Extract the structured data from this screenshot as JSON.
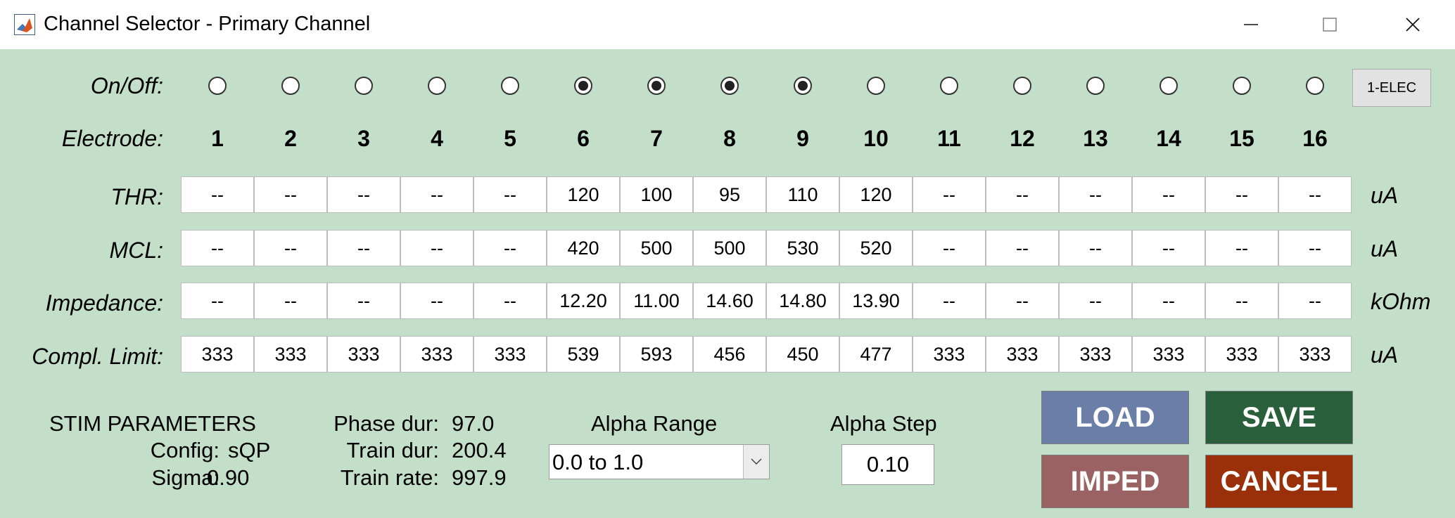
{
  "window": {
    "title": "Channel Selector - Primary Channel"
  },
  "labels": {
    "onoff": "On/Off:",
    "electrode": "Electrode:",
    "thr": "THR:",
    "mcl": "MCL:",
    "impedance": "Impedance:",
    "compl": "Compl. Limit:"
  },
  "units": {
    "thr": "uA",
    "mcl": "uA",
    "impedance": "kOhm",
    "compl": "uA"
  },
  "electrodes": [
    "1",
    "2",
    "3",
    "4",
    "5",
    "6",
    "7",
    "8",
    "9",
    "10",
    "11",
    "12",
    "13",
    "14",
    "15",
    "16"
  ],
  "onoff": [
    false,
    false,
    false,
    false,
    false,
    true,
    true,
    true,
    true,
    false,
    false,
    false,
    false,
    false,
    false,
    false
  ],
  "thr": [
    "--",
    "--",
    "--",
    "--",
    "--",
    "120",
    "100",
    "95",
    "110",
    "120",
    "--",
    "--",
    "--",
    "--",
    "--",
    "--"
  ],
  "mcl": [
    "--",
    "--",
    "--",
    "--",
    "--",
    "420",
    "500",
    "500",
    "530",
    "520",
    "--",
    "--",
    "--",
    "--",
    "--",
    "--"
  ],
  "impedance": [
    "--",
    "--",
    "--",
    "--",
    "--",
    "12.20",
    "11.00",
    "14.60",
    "14.80",
    "13.90",
    "--",
    "--",
    "--",
    "--",
    "--",
    "--"
  ],
  "compl": [
    "333",
    "333",
    "333",
    "333",
    "333",
    "539",
    "593",
    "456",
    "450",
    "477",
    "333",
    "333",
    "333",
    "333",
    "333",
    "333"
  ],
  "one_elec_button": "1-ELEC",
  "stim": {
    "heading": "STIM PARAMETERS",
    "config_label": "Config:",
    "config_value": "sQP",
    "sigma_label": "Sigma:",
    "sigma_value": "0.90",
    "phase_label": "Phase dur:",
    "phase_value": "97.0",
    "train_label": "Train dur:",
    "train_value": "200.4",
    "rate_label": "Train rate:",
    "rate_value": "997.9"
  },
  "alpha_range": {
    "label": "Alpha Range",
    "selected": "0.0 to 1.0"
  },
  "alpha_step": {
    "label": "Alpha Step",
    "value": "0.10"
  },
  "buttons": {
    "load": "LOAD",
    "save": "SAVE",
    "imped": "IMPED",
    "cancel": "CANCEL"
  },
  "colors": {
    "background": "#c4dfc9",
    "load": "#6b7ea8",
    "save": "#2a5f3c",
    "imped": "#9a6263",
    "cancel": "#9a3009"
  },
  "icons": {
    "app": "matlab-icon",
    "minimize": "minimize-icon",
    "maximize": "maximize-icon",
    "close": "close-icon",
    "dropdown": "chevron-down-icon"
  }
}
